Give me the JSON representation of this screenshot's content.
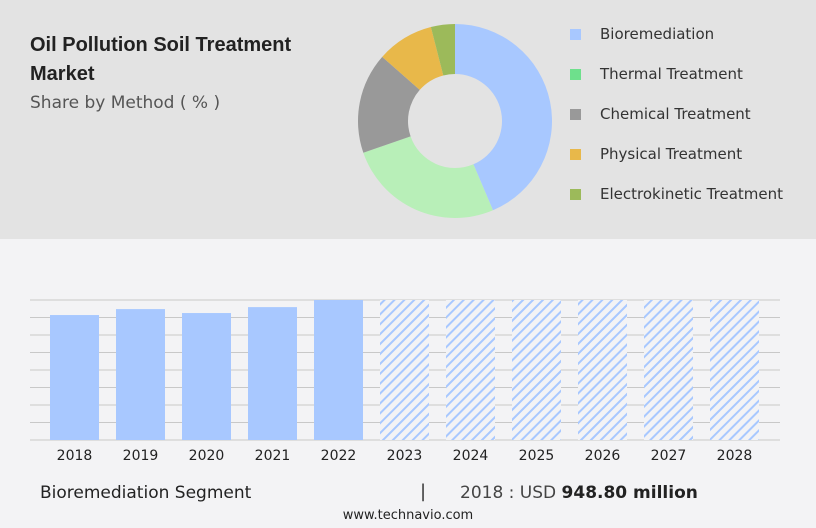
{
  "title": "Oil Pollution Soil Treatment Market",
  "subtitle": "Share by Method ( % )",
  "chart_data": [
    {
      "type": "pie",
      "style": "donut",
      "slices": [
        {
          "name": "Bioremediation",
          "value": 43.6,
          "color": "#a8c8ff",
          "legend_color": "#a8c8ff"
        },
        {
          "name": "Thermal Treatment",
          "value": 26.1,
          "color": "#b8efb8",
          "legend_color": "#6ee08c"
        },
        {
          "name": "Chemical Treatment",
          "value": 16.8,
          "color": "#999999",
          "legend_color": "#999999"
        },
        {
          "name": "Physical Treatment",
          "value": 9.5,
          "color": "#e8b84a",
          "legend_color": "#e8b84a"
        },
        {
          "name": "Electrokinetic Treatment",
          "value": 4.0,
          "color": "#9cba5a",
          "legend_color": "#9cba5a"
        }
      ],
      "legend": "right"
    },
    {
      "type": "bar",
      "categories": [
        "2018",
        "2019",
        "2020",
        "2021",
        "2022",
        "2023",
        "2024",
        "2025",
        "2026",
        "2027",
        "2028"
      ],
      "values": [
        948.8,
        994,
        964,
        1009,
        1063,
        null,
        null,
        null,
        null,
        null,
        null
      ],
      "forecast_hatched": [
        "2023",
        "2024",
        "2025",
        "2026",
        "2027",
        "2028"
      ],
      "ylim": [
        0,
        1063
      ],
      "grid": true,
      "color": "#a8c8ff"
    }
  ],
  "footer": {
    "segment": "Bioremediation Segment",
    "separator": "|",
    "year_label": "2018 : USD",
    "value": "948.80 million",
    "site": "www.technavio.com"
  }
}
